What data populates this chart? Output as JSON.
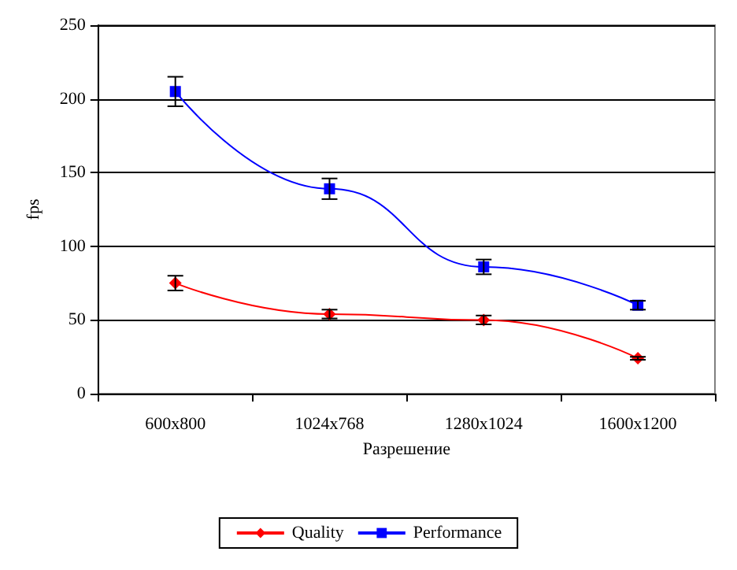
{
  "chart_data": {
    "type": "line",
    "xlabel": "Разрешение",
    "ylabel": "fps",
    "categories": [
      "600x800",
      "1024x768",
      "1280x1024",
      "1600x1200"
    ],
    "series": [
      {
        "name": "Quality",
        "color": "#ff0000",
        "marker": "diamond",
        "values": [
          75,
          54,
          50,
          24
        ],
        "errors": [
          5,
          3,
          3,
          1
        ]
      },
      {
        "name": "Performance",
        "color": "#0000ff",
        "marker": "square",
        "values": [
          205,
          139,
          86,
          60
        ],
        "errors": [
          10,
          7,
          5,
          3
        ]
      }
    ],
    "ylim": [
      0,
      250
    ],
    "yticks": [
      0,
      50,
      100,
      150,
      200,
      250
    ],
    "grid": "y",
    "legend": "bottom"
  }
}
